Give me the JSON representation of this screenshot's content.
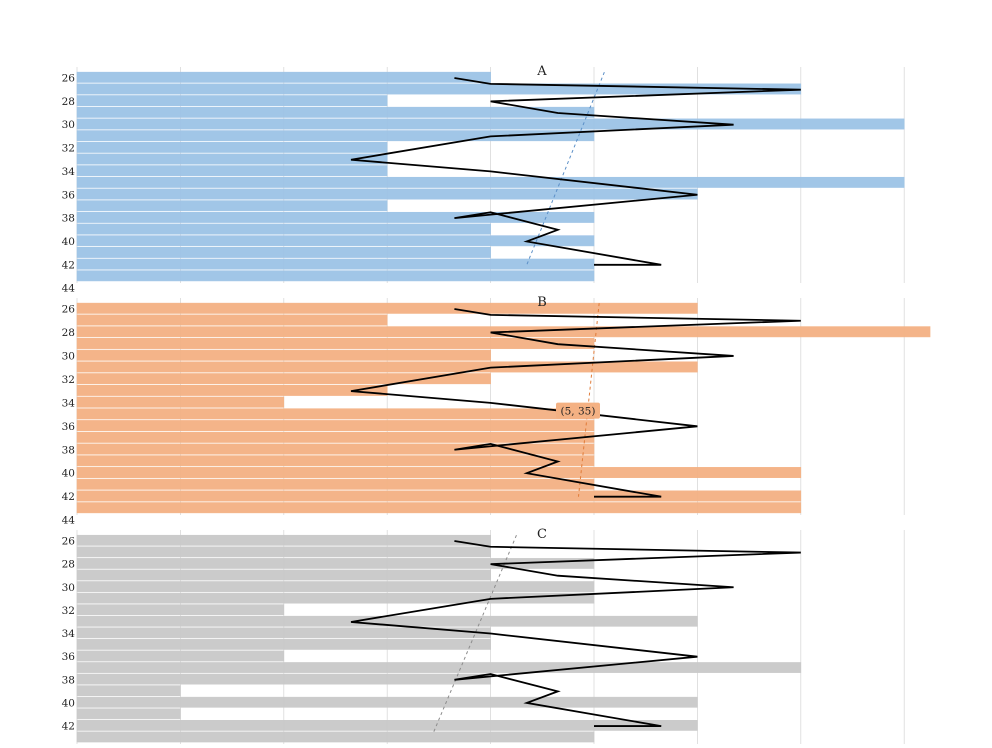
{
  "chart_data": [
    {
      "type": "bar",
      "orientation": "horizontal",
      "title": "A",
      "color": "#9dc3e6",
      "trend_color": "#5b8fc7",
      "y_ticks": [
        "26",
        "28",
        "30",
        "32",
        "34",
        "36",
        "38",
        "40",
        "42",
        "44"
      ],
      "ylim": [
        25.5,
        44
      ],
      "xlim": [
        0,
        8
      ],
      "y": [
        25.5,
        26.5,
        27.5,
        28.5,
        29.5,
        30.5,
        31.5,
        32.5,
        33.5,
        34.5,
        35.5,
        36.5,
        37.5,
        38.5,
        39.5,
        40.5,
        41.5,
        42.5
      ],
      "values": [
        4,
        7,
        3,
        5,
        8,
        5,
        3,
        3,
        3,
        8,
        6,
        3,
        5,
        4,
        5,
        4,
        5,
        5
      ],
      "annotation": null
    },
    {
      "type": "bar",
      "orientation": "horizontal",
      "title": "B",
      "color": "#f4b183",
      "trend_color": "#e07b39",
      "y_ticks": [
        "26",
        "28",
        "30",
        "32",
        "34",
        "36",
        "38",
        "40",
        "42",
        "44"
      ],
      "ylim": [
        25.5,
        44
      ],
      "xlim": [
        0,
        8
      ],
      "y": [
        25.5,
        26.5,
        27.5,
        28.5,
        29.5,
        30.5,
        31.5,
        32.5,
        33.5,
        34.5,
        35.5,
        36.5,
        37.5,
        38.5,
        39.5,
        40.5,
        41.5,
        42.5
      ],
      "values": [
        6,
        3,
        8.25,
        5,
        4,
        6,
        4,
        3,
        2,
        5,
        5,
        5,
        5,
        5,
        7,
        5,
        7,
        7
      ],
      "annotation": {
        "text": "(5, 35)",
        "x": 5,
        "y": 35
      }
    },
    {
      "type": "bar",
      "orientation": "horizontal",
      "title": "C",
      "color": "#c9c9c9",
      "trend_color": "#8c8c8c",
      "y_ticks": [
        "26",
        "28",
        "30",
        "32",
        "34",
        "36",
        "38",
        "40",
        "42",
        "44"
      ],
      "ylim": [
        25.5,
        44
      ],
      "xlim": [
        0,
        8
      ],
      "y": [
        25.5,
        26.5,
        27.5,
        28.5,
        29.5,
        30.5,
        31.5,
        32.5,
        33.5,
        34.5,
        35.5,
        36.5,
        37.5,
        38.5,
        39.5,
        40.5,
        41.5,
        42.5
      ],
      "values": [
        4,
        4,
        5,
        4,
        5,
        5,
        2,
        6,
        4,
        4,
        2,
        7,
        4,
        1,
        6,
        1,
        6,
        5
      ],
      "annotation": null
    }
  ],
  "line_series": {
    "x": [
      3.65,
      4,
      7,
      4,
      4.65,
      6.35,
      4,
      2.65,
      4,
      6,
      3.65,
      4,
      4.65,
      4.35,
      5.65,
      5
    ],
    "y": [
      26,
      26.5,
      27,
      28,
      29,
      30,
      31,
      33,
      34,
      36,
      38,
      37.5,
      39,
      40,
      42,
      42
    ]
  },
  "trend_lines": [
    {
      "x": [
        5.1,
        4.35
      ],
      "y": [
        25.5,
        42
      ]
    },
    {
      "x": [
        5.05,
        4.85
      ],
      "y": [
        25.5,
        42
      ]
    },
    {
      "x": [
        4.25,
        3.45
      ],
      "y": [
        25.5,
        42.5
      ]
    }
  ],
  "grid": true
}
